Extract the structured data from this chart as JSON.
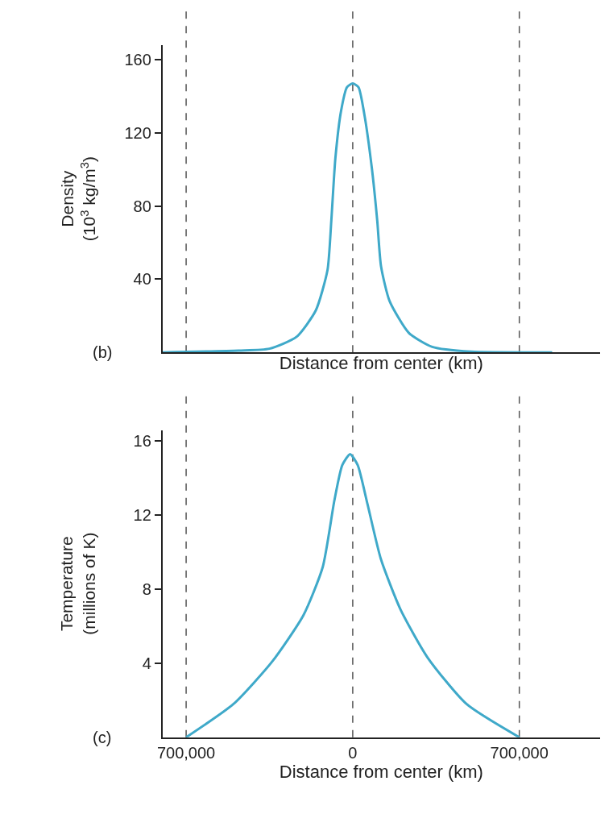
{
  "chart_data": [
    {
      "type": "line",
      "ylabel": "Density\n(10$^{3}$ kg/m$^{3}$)",
      "xlabel": "Distance from center (km)",
      "annotations": [
        "(b)"
      ],
      "xlim": [
        -800000,
        1040000
      ],
      "ylim": [
        0,
        168
      ],
      "yticks": [
        40,
        80,
        120,
        160
      ],
      "tick_labels": "y",
      "grid": false,
      "legend": false,
      "line_style": "solid",
      "series": [
        {
          "color": "#3fa9c9",
          "x": [
            -800000,
            -480000,
            -350000,
            -236000,
            -155000,
            -106000,
            -90000,
            -73000,
            -49000,
            -24000,
            0,
            24000,
            49000,
            81000,
            103000,
            119000,
            155000,
            236000,
            334000,
            497000,
            838000
          ],
          "values": [
            0,
            1,
            2,
            8.5,
            23,
            45,
            72,
            106,
            132,
            145,
            147,
            145,
            130,
            100,
            72,
            47,
            28,
            10.6,
            3,
            0.4,
            0
          ]
        }
      ],
      "ref_lines": [
        {
          "axis": "x",
          "value": -700000,
          "line_style": "dashed",
          "color": "#555555"
        },
        {
          "axis": "x",
          "value": 0,
          "line_style": "dashed",
          "color": "#555555"
        },
        {
          "axis": "x",
          "value": 700000,
          "line_style": "dashed",
          "color": "#555555"
        }
      ]
    },
    {
      "type": "line",
      "ylabel": "Temperature\n(millions of K)",
      "xlabel": "Distance from center (km)",
      "annotations": [
        "(c)"
      ],
      "xlim": [
        -800000,
        1040000
      ],
      "ylim": [
        0,
        16.6
      ],
      "yticks": [
        4,
        8,
        12,
        16
      ],
      "xticks": [
        {
          "value": -700000,
          "label": "700,000"
        },
        0,
        {
          "value": 700000,
          "label": "700,000"
        }
      ],
      "grid": false,
      "legend": false,
      "line_style": "solid",
      "series": [
        {
          "color": "#3fa9c9",
          "x": [
            -700000,
            -501000,
            -338000,
            -207000,
            -126000,
            -77000,
            -44000,
            -11000,
            21000,
            62000,
            119000,
            201000,
            315000,
            478000,
            700000
          ],
          "values": [
            0,
            1.8,
            4.1,
            6.6,
            9.2,
            12.8,
            14.7,
            15.3,
            14.7,
            12.6,
            9.6,
            6.9,
            4.3,
            1.8,
            0
          ]
        }
      ],
      "ref_lines": [
        {
          "axis": "x",
          "value": -700000,
          "line_style": "dashed",
          "color": "#555555"
        },
        {
          "axis": "x",
          "value": 0,
          "line_style": "dashed",
          "color": "#555555"
        },
        {
          "axis": "x",
          "value": 700000,
          "line_style": "dashed",
          "color": "#555555"
        }
      ]
    }
  ]
}
